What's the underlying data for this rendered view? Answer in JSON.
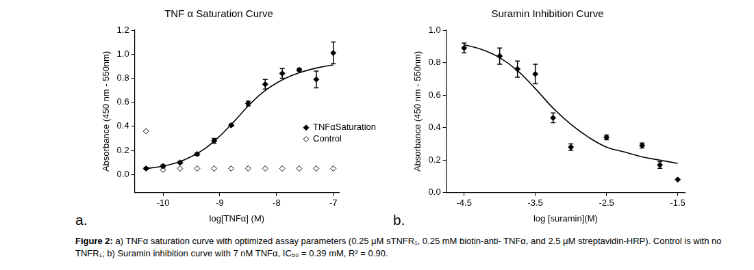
{
  "caption": {
    "label": "Figure 2:",
    "text": "a) TNFα saturation curve with optimized assay parameters (0.25 μM sTNFR₁, 0.25 mM biotin-anti- TNFα, and 2.5 μM streptavidin-HRP). Control is with no TNFR₁; b) Suramin inhibition curve with 7 nM TNFα, IC₅₀ = 0.39 mM, R² = 0.90."
  },
  "chart_data": [
    {
      "type": "scatter",
      "panel": "a.",
      "title": "TNF α Saturation Curve",
      "x_label": "log[TNFα] (M)",
      "y_label": "Absorbance (450 nm - 550nm)",
      "xlim": [
        -10.5,
        -6.9
      ],
      "xticks": [
        -10,
        -9,
        -8,
        -7
      ],
      "ylim": [
        -0.15,
        1.2
      ],
      "yticks": [
        {
          "value": 0,
          "label": "0.0"
        },
        0.2,
        0.4,
        0.6,
        0.8,
        {
          "value": 1,
          "label": "1.0"
        },
        1.2
      ],
      "grid": false,
      "legend": "right",
      "series": [
        {
          "name": "TNFαSaturation",
          "color": "#000000",
          "marker": "diamond",
          "x": [
            -10.3,
            -10.0,
            -9.7,
            -9.4,
            -9.1,
            -8.8,
            -8.5,
            -8.2,
            -7.9,
            -7.6,
            -7.3,
            -7.0
          ],
          "values": [
            0.05,
            0.07,
            0.1,
            0.17,
            0.28,
            0.41,
            0.59,
            0.75,
            0.84,
            0.87,
            0.79,
            1.01
          ],
          "errors": [
            0.01,
            0.01,
            0.01,
            0.01,
            0.02,
            0.01,
            0.02,
            0.04,
            0.04,
            0.01,
            0.07,
            0.09
          ]
        },
        {
          "name": "Control",
          "color": "#000000",
          "marker": "open_diamond",
          "x": [
            -10.3,
            -10.0,
            -9.7,
            -9.4,
            -9.1,
            -8.8,
            -8.5,
            -8.2,
            -7.9,
            -7.6,
            -7.3,
            -7.0
          ],
          "values": [
            0.36,
            0.04,
            0.05,
            0.05,
            0.05,
            0.05,
            0.05,
            0.05,
            0.05,
            0.05,
            0.05,
            0.05
          ]
        },
        {
          "type": "line",
          "color": "#000000",
          "marker": "none",
          "line_style": "solid",
          "x": [
            -10.3,
            -10.0,
            -9.75,
            -9.5,
            -9.25,
            -9.0,
            -8.75,
            -8.5,
            -8.25,
            -8.0,
            -7.75,
            -7.5,
            -7.25,
            -7.0
          ],
          "values": [
            0.05,
            0.07,
            0.1,
            0.15,
            0.22,
            0.32,
            0.44,
            0.57,
            0.68,
            0.76,
            0.82,
            0.86,
            0.89,
            0.91
          ]
        }
      ]
    },
    {
      "type": "scatter",
      "panel": "b.",
      "title": "Suramin Inhibition Curve",
      "x_label": "log [suramin](M)",
      "y_label": "Absorbance (450 nm - 550nm)",
      "xlim": [
        -4.75,
        -1.4
      ],
      "xticks": [
        -4.5,
        -3.5,
        -2.5,
        -1.5
      ],
      "ylim": [
        0,
        1
      ],
      "yticks": [
        {
          "value": 0,
          "label": "0.0"
        },
        0.2,
        0.4,
        0.6,
        0.8,
        {
          "value": 1,
          "label": "1.0"
        }
      ],
      "grid": false,
      "series": [
        {
          "color": "#000000",
          "marker": "diamond",
          "x": [
            -4.5,
            -4.0,
            -3.75,
            -3.5,
            -3.25,
            -3.0,
            -2.5,
            -2.0,
            -1.75,
            -1.5
          ],
          "values": [
            0.89,
            0.84,
            0.76,
            0.73,
            0.46,
            0.28,
            0.34,
            0.29,
            0.17,
            0.08
          ],
          "errors": [
            0.03,
            0.05,
            0.05,
            0.06,
            0.03,
            0.02,
            0.015,
            0.015,
            0.02,
            null
          ]
        },
        {
          "type": "line",
          "color": "#000000",
          "marker": "none",
          "line_style": "solid",
          "x": [
            -4.5,
            -4.25,
            -4.0,
            -3.75,
            -3.5,
            -3.25,
            -3.0,
            -2.75,
            -2.5,
            -2.25,
            -2.0,
            -1.75,
            -1.5
          ],
          "values": [
            0.91,
            0.88,
            0.83,
            0.75,
            0.64,
            0.52,
            0.42,
            0.34,
            0.28,
            0.25,
            0.22,
            0.2,
            0.18
          ]
        }
      ]
    }
  ]
}
